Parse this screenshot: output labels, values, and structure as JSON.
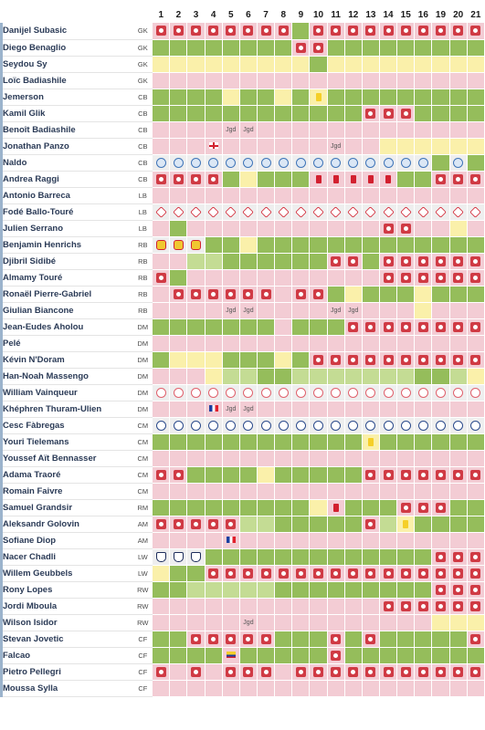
{
  "matchdays": [
    "1",
    "2",
    "3",
    "4",
    "5",
    "6",
    "7",
    "8",
    "9",
    "10",
    "11",
    "12",
    "13",
    "14",
    "15",
    "16",
    "19",
    "20",
    "21"
  ],
  "legend_colors": {
    "started_full": "#95bd5b",
    "partial": "#c4dc94",
    "sub_unused": "#faf0aa",
    "not_in_squad": "#f3ccd4",
    "other_team": "#eeeeee",
    "event": "#d03a44"
  },
  "players": [
    {
      "name": "Danijel Subasic",
      "pos": "GK",
      "cells": [
        "p:R",
        "p:R",
        "p:R",
        "p:R",
        "p:R",
        "p:R",
        "p:R",
        "p:R",
        "g",
        "p:R",
        "p:R",
        "p:R",
        "p:R",
        "p:R",
        "p:R",
        "p:R",
        "p:R",
        "p:R",
        "p:R"
      ]
    },
    {
      "name": "Diego Benaglio",
      "pos": "GK",
      "cells": [
        "g",
        "g",
        "g",
        "g",
        "g",
        "g",
        "g",
        "g",
        "p:R",
        "p:R",
        "g",
        "g",
        "g",
        "g",
        "g",
        "g",
        "g",
        "g",
        "g"
      ]
    },
    {
      "name": "Seydou Sy",
      "pos": "GK",
      "cells": [
        "y",
        "y",
        "y",
        "y",
        "y",
        "y",
        "y",
        "y",
        "y",
        "g",
        "y",
        "y",
        "y",
        "y",
        "y",
        "y",
        "y",
        "y",
        "y"
      ]
    },
    {
      "name": "Loïc Badiashile",
      "pos": "GK",
      "cells": [
        "p",
        "p",
        "p",
        "p",
        "p",
        "p",
        "p",
        "p",
        "p",
        "p",
        "p",
        "p",
        "p",
        "p",
        "p",
        "p",
        "p",
        "p",
        "p"
      ]
    },
    {
      "name": "Jemerson",
      "pos": "CB",
      "cells": [
        "g",
        "g",
        "g",
        "g",
        "y",
        "g",
        "g",
        "y",
        "g",
        "y:Y",
        "g",
        "g",
        "g",
        "g",
        "g",
        "g",
        "g",
        "g",
        "g"
      ]
    },
    {
      "name": "Kamil Glik",
      "pos": "CB",
      "cells": [
        "g",
        "g",
        "g",
        "g",
        "g",
        "g",
        "g",
        "g",
        "g",
        "g",
        "g",
        "g",
        "p:R",
        "p:R",
        "p:R",
        "g",
        "g",
        "g",
        "g"
      ]
    },
    {
      "name": "Benoît Badiashile",
      "pos": "CB",
      "cells": [
        "p",
        "p",
        "p",
        "p",
        "p:J",
        "p:J",
        "p",
        "p",
        "p",
        "p",
        "p",
        "p",
        "p",
        "p",
        "p",
        "p",
        "p",
        "p",
        "p"
      ]
    },
    {
      "name": "Jonathan Panzo",
      "pos": "CB",
      "cells": [
        "p",
        "p",
        "p",
        "p:E",
        "p",
        "p",
        "p",
        "p",
        "p",
        "p",
        "p:J",
        "p",
        "p",
        "y",
        "y",
        "y",
        "y",
        "y",
        "y"
      ]
    },
    {
      "name": "Naldo",
      "pos": "CB",
      "cells": [
        "w:B",
        "w:B",
        "w:B",
        "w:B",
        "w:B",
        "w:B",
        "w:B",
        "w:B",
        "w:B",
        "w:B",
        "w:B",
        "w:B",
        "w:B",
        "w:B",
        "w:B",
        "w:B",
        "g",
        "w:B",
        "g"
      ]
    },
    {
      "name": "Andrea Raggi",
      "pos": "CB",
      "cells": [
        "p:R",
        "p:R",
        "p:R",
        "p:R",
        "g",
        "y",
        "g",
        "g",
        "g",
        "p:C",
        "p:C",
        "p:C",
        "p:C",
        "p:C",
        "g",
        "g",
        "p:R",
        "p:R",
        "p:R"
      ]
    },
    {
      "name": "Antonio Barreca",
      "pos": "LB",
      "cells": [
        "p",
        "p",
        "p",
        "p",
        "p",
        "p",
        "p",
        "p",
        "p",
        "p",
        "p",
        "p",
        "p",
        "p",
        "p",
        "p",
        "p",
        "p",
        "p"
      ]
    },
    {
      "name": "Fodé Ballo-Touré",
      "pos": "LB",
      "cells": [
        "w:L",
        "w:L",
        "w:L",
        "w:L",
        "w:L",
        "w:L",
        "w:L",
        "w:L",
        "w:L",
        "w:L",
        "w:L",
        "w:L",
        "w:L",
        "w:L",
        "w:L",
        "w:L",
        "w:L",
        "w:L",
        "w:L"
      ]
    },
    {
      "name": "Julien Serrano",
      "pos": "LB",
      "cells": [
        "p",
        "g",
        "p",
        "p",
        "p",
        "p",
        "p",
        "p",
        "p",
        "p",
        "p",
        "p",
        "p",
        "p:R",
        "p:R",
        "p",
        "p",
        "y",
        "p"
      ]
    },
    {
      "name": "Benjamin Henrichs",
      "pos": "RB",
      "cells": [
        "w:V",
        "w:V",
        "w:V",
        "g",
        "g",
        "y",
        "g",
        "g",
        "g",
        "g",
        "g",
        "g",
        "g",
        "g",
        "g",
        "g",
        "g",
        "g",
        "g"
      ]
    },
    {
      "name": "Djibril Sidibé",
      "pos": "RB",
      "cells": [
        "p",
        "p",
        "l",
        "l",
        "g",
        "g",
        "g",
        "g",
        "g",
        "g",
        "p:R",
        "p:R",
        "g",
        "p:R",
        "p:R",
        "p:R",
        "p:R",
        "p:R",
        "p:R"
      ]
    },
    {
      "name": "Almamy Touré",
      "pos": "RB",
      "cells": [
        "p:R",
        "g",
        "p",
        "p",
        "p",
        "p",
        "p",
        "p",
        "p",
        "p",
        "p",
        "p",
        "p",
        "p:R",
        "p:R",
        "p:R",
        "p:R",
        "p:R",
        "p:R"
      ]
    },
    {
      "name": "Ronaël Pierre-Gabriel",
      "pos": "RB",
      "cells": [
        "p",
        "p:R",
        "p:R",
        "p:R",
        "p:R",
        "p:R",
        "p:R",
        "p",
        "p:R",
        "p:R",
        "g",
        "y",
        "g",
        "g",
        "g",
        "y",
        "g",
        "g",
        "g"
      ]
    },
    {
      "name": "Giulian Biancone",
      "pos": "RB",
      "cells": [
        "p",
        "p",
        "p",
        "p",
        "p:J",
        "p:J",
        "p",
        "p",
        "p",
        "p",
        "p:J",
        "p:J",
        "p",
        "p",
        "p",
        "y",
        "p",
        "p",
        "p"
      ]
    },
    {
      "name": "Jean-Eudes Aholou",
      "pos": "DM",
      "cells": [
        "g",
        "g",
        "g",
        "g",
        "g",
        "g",
        "g",
        "p",
        "g",
        "g",
        "g",
        "p:R",
        "p:R",
        "p:R",
        "p:R",
        "p:R",
        "p:R",
        "p:R",
        "p:R"
      ]
    },
    {
      "name": "Pelé",
      "pos": "DM",
      "cells": [
        "p",
        "p",
        "p",
        "p",
        "p",
        "p",
        "p",
        "p",
        "p",
        "p",
        "p",
        "p",
        "p",
        "p",
        "p",
        "p",
        "p",
        "p",
        "p"
      ]
    },
    {
      "name": "Kévin N'Doram",
      "pos": "DM",
      "cells": [
        "g",
        "y",
        "y",
        "y",
        "g",
        "g",
        "g",
        "y",
        "g",
        "p:R",
        "p:R",
        "p:R",
        "p:R",
        "p:R",
        "p:R",
        "p:R",
        "p:R",
        "p:R",
        "p:R"
      ]
    },
    {
      "name": "Han-Noah Massengo",
      "pos": "DM",
      "cells": [
        "p",
        "p",
        "p",
        "y",
        "l",
        "l",
        "g",
        "g",
        "l",
        "l",
        "l",
        "l",
        "l",
        "l",
        "l",
        "g",
        "g",
        "l",
        "y"
      ]
    },
    {
      "name": "William Vainqueur",
      "pos": "DM",
      "cells": [
        "w:P",
        "w:P",
        "w:P",
        "w:P",
        "w:P",
        "w:P",
        "w:P",
        "w:P",
        "w:P",
        "w:P",
        "w:P",
        "w:P",
        "w:P",
        "w:P",
        "w:P",
        "w:P",
        "w:P",
        "w:P",
        "w:P"
      ]
    },
    {
      "name": "Khéphren Thuram-Ulien",
      "pos": "DM",
      "cells": [
        "p",
        "p",
        "p",
        "p:F",
        "p:J",
        "p:J",
        "p",
        "p",
        "p",
        "p",
        "p",
        "p",
        "p",
        "p",
        "p",
        "p",
        "p",
        "p",
        "p"
      ]
    },
    {
      "name": "Cesc Fàbregas",
      "pos": "CM",
      "cells": [
        "w:N",
        "w:N",
        "w:N",
        "w:N",
        "w:N",
        "w:N",
        "w:N",
        "w:N",
        "w:N",
        "w:N",
        "w:N",
        "w:N",
        "w:N",
        "w:N",
        "w:N",
        "w:N",
        "w:N",
        "w:N",
        "w:N"
      ]
    },
    {
      "name": "Youri Tielemans",
      "pos": "CM",
      "cells": [
        "g",
        "g",
        "g",
        "g",
        "g",
        "g",
        "g",
        "g",
        "g",
        "g",
        "g",
        "g",
        "y:Y",
        "g",
        "g",
        "g",
        "g",
        "g",
        "g"
      ]
    },
    {
      "name": "Youssef Aït Bennasser",
      "pos": "CM",
      "cells": [
        "p",
        "p",
        "p",
        "p",
        "p",
        "p",
        "p",
        "p",
        "p",
        "p",
        "p",
        "p",
        "p",
        "p",
        "p",
        "p",
        "p",
        "p",
        "p"
      ]
    },
    {
      "name": "Adama Traoré",
      "pos": "CM",
      "cells": [
        "p:R",
        "p:R",
        "g",
        "g",
        "g",
        "g",
        "y",
        "g",
        "g",
        "g",
        "g",
        "g",
        "p:R",
        "p:R",
        "p:R",
        "p:R",
        "p:R",
        "p:R",
        "p:R"
      ]
    },
    {
      "name": "Romain Faivre",
      "pos": "CM",
      "cells": [
        "p",
        "p",
        "p",
        "p",
        "p",
        "p",
        "p",
        "p",
        "p",
        "p",
        "p",
        "p",
        "p",
        "p",
        "p",
        "p",
        "p",
        "p",
        "p"
      ]
    },
    {
      "name": "Samuel Grandsir",
      "pos": "RM",
      "cells": [
        "g",
        "g",
        "g",
        "g",
        "g",
        "g",
        "g",
        "g",
        "g",
        "y",
        "p:C",
        "g",
        "g",
        "g",
        "p:R",
        "p:R",
        "p:R",
        "g",
        "g"
      ]
    },
    {
      "name": "Aleksandr Golovin",
      "pos": "AM",
      "cells": [
        "p:R",
        "p:R",
        "p:R",
        "p:R",
        "p:R",
        "l",
        "l",
        "g",
        "g",
        "g",
        "g",
        "g",
        "p:R",
        "l",
        "y:Y",
        "g",
        "g",
        "g",
        "g"
      ]
    },
    {
      "name": "Sofiane Diop",
      "pos": "AM",
      "cells": [
        "p",
        "p",
        "p",
        "p",
        "p:F",
        "p",
        "p",
        "p",
        "p",
        "p",
        "p",
        "p",
        "p",
        "p",
        "p",
        "p",
        "p",
        "p",
        "p"
      ]
    },
    {
      "name": "Nacer Chadli",
      "pos": "LW",
      "cells": [
        "w:W",
        "w:W",
        "w:W",
        "g",
        "g",
        "g",
        "g",
        "g",
        "g",
        "g",
        "g",
        "g",
        "g",
        "g",
        "g",
        "g",
        "p:R",
        "p:R",
        "p:R"
      ]
    },
    {
      "name": "Willem Geubbels",
      "pos": "LW",
      "cells": [
        "y",
        "g",
        "g",
        "p:R",
        "p:R",
        "p:R",
        "p:R",
        "p:R",
        "p:R",
        "p:R",
        "p:R",
        "p:R",
        "p:R",
        "p:R",
        "p:R",
        "p:R",
        "p:R",
        "p:R",
        "p:R"
      ]
    },
    {
      "name": "Rony Lopes",
      "pos": "RW",
      "cells": [
        "g",
        "g",
        "l",
        "l",
        "l",
        "l",
        "l",
        "g",
        "g",
        "g",
        "g",
        "g",
        "g",
        "g",
        "g",
        "g",
        "p:R",
        "p:R",
        "p:R"
      ]
    },
    {
      "name": "Jordi Mboula",
      "pos": "RW",
      "cells": [
        "p",
        "p",
        "p",
        "p",
        "p",
        "p",
        "p",
        "p",
        "p",
        "p",
        "p",
        "p",
        "p",
        "p:R",
        "p:R",
        "p:R",
        "p:R",
        "p:R",
        "p:R"
      ]
    },
    {
      "name": "Wilson Isidor",
      "pos": "RW",
      "cells": [
        "p",
        "p",
        "p",
        "p",
        "p",
        "p:J",
        "p",
        "p",
        "p",
        "p",
        "p",
        "p",
        "p",
        "p",
        "p",
        "p",
        "y",
        "y",
        "y"
      ]
    },
    {
      "name": "Stevan Jovetic",
      "pos": "CF",
      "cells": [
        "g",
        "g",
        "p:R",
        "p:R",
        "p:R",
        "p:R",
        "p:R",
        "g",
        "g",
        "g",
        "p:R",
        "g",
        "p:R",
        "g",
        "g",
        "g",
        "g",
        "g",
        "p:R"
      ]
    },
    {
      "name": "Falcao",
      "pos": "CF",
      "cells": [
        "g",
        "g",
        "g",
        "g",
        "p:O",
        "g",
        "g",
        "g",
        "g",
        "g",
        "p:R",
        "g",
        "g",
        "g",
        "g",
        "g",
        "g",
        "g",
        "g"
      ]
    },
    {
      "name": "Pietro Pellegri",
      "pos": "CF",
      "cells": [
        "p:R",
        "p",
        "p:R",
        "p",
        "p:R",
        "p:R",
        "p:R",
        "p",
        "p:R",
        "p:R",
        "p:R",
        "p:R",
        "p:R",
        "p:R",
        "p:R",
        "p:R",
        "p:R",
        "p:R",
        "p:R"
      ]
    },
    {
      "name": "Moussa Sylla",
      "pos": "CF",
      "cells": [
        "p",
        "p",
        "p",
        "p",
        "p",
        "p",
        "p",
        "p",
        "p",
        "p",
        "p",
        "p",
        "p",
        "p",
        "p",
        "p",
        "p",
        "p",
        "p"
      ]
    }
  ],
  "cell_text": {
    "J": "Jgd"
  }
}
